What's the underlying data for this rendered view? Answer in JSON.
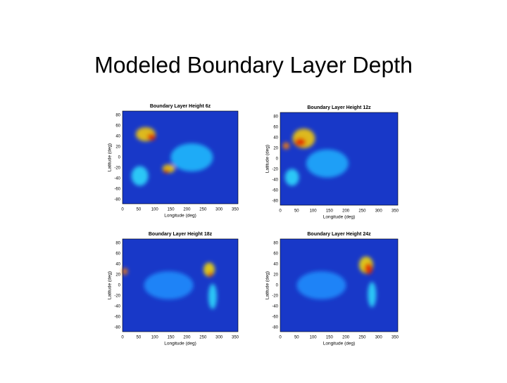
{
  "title": "Modeled Boundary Layer Depth",
  "panels": [
    {
      "title": "Boundary Layer Height 6z",
      "xlabel": "Longitude (deg)",
      "ylabel": "Latitude (deg)",
      "xticks": [
        0,
        50,
        100,
        150,
        200,
        250,
        300,
        350
      ],
      "yticks": [
        80,
        60,
        40,
        20,
        0,
        -20,
        -40,
        -60,
        -80
      ]
    },
    {
      "title": "Boundary Layer Height 12z",
      "xlabel": "Longitude (deg)",
      "ylabel": "Latitude (deg)",
      "xticks": [
        0,
        50,
        100,
        150,
        200,
        250,
        300,
        350
      ],
      "yticks": [
        80,
        60,
        40,
        20,
        0,
        -20,
        -40,
        -60,
        -80
      ]
    },
    {
      "title": "Boundary Layer Height 18z",
      "xlabel": "Longitude (deg)",
      "ylabel": "Latitude (deg)",
      "xticks": [
        0,
        50,
        100,
        150,
        200,
        250,
        300,
        350
      ],
      "yticks": [
        80,
        60,
        40,
        20,
        0,
        -20,
        -40,
        -60,
        -80
      ]
    },
    {
      "title": "Boundary Layer Height 24z",
      "xlabel": "Longitude (deg)",
      "ylabel": "Latitude (deg)",
      "xticks": [
        0,
        50,
        100,
        150,
        200,
        250,
        300,
        350
      ],
      "yticks": [
        80,
        60,
        40,
        20,
        0,
        -20,
        -40,
        -60,
        -80
      ]
    }
  ]
}
